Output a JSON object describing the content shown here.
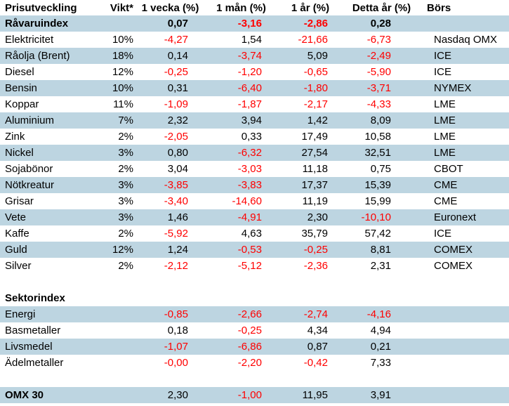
{
  "colors": {
    "band_blue": "#BDD5E1",
    "negative_red": "#FF0000",
    "text": "#000000"
  },
  "table": {
    "headers": [
      "Prisutveckling",
      "Vikt*",
      "1 vecka (%)",
      "1 mån (%)",
      "1 år (%)",
      "Detta år (%)",
      "Börs"
    ],
    "rows": [
      {
        "name": "Råvaruindex",
        "vikt": "",
        "v1w": "0,07",
        "v1m": "-3,16",
        "v1y": "-2,86",
        "ytd": "0,28",
        "bors": "",
        "bold_all": true,
        "band": true
      },
      {
        "name": "Elektricitet",
        "vikt": "10%",
        "v1w": "-4,27",
        "v1m": "1,54",
        "v1y": "-21,66",
        "ytd": "-6,73",
        "bors": "Nasdaq OMX"
      },
      {
        "name": "Råolja (Brent)",
        "vikt": "18%",
        "v1w": "0,14",
        "v1m": "-3,74",
        "v1y": "5,09",
        "ytd": "-2,49",
        "bors": "ICE",
        "band": true
      },
      {
        "name": "Diesel",
        "vikt": "12%",
        "v1w": "-0,25",
        "v1m": "-1,20",
        "v1y": "-0,65",
        "ytd": "-5,90",
        "bors": "ICE"
      },
      {
        "name": "Bensin",
        "vikt": "10%",
        "v1w": "0,31",
        "v1m": "-6,40",
        "v1y": "-1,80",
        "ytd": "-3,71",
        "bors": "NYMEX",
        "band": true
      },
      {
        "name": "Koppar",
        "vikt": "11%",
        "v1w": "-1,09",
        "v1m": "-1,87",
        "v1y": "-2,17",
        "ytd": "-4,33",
        "bors": "LME"
      },
      {
        "name": "Aluminium",
        "vikt": "7%",
        "v1w": "2,32",
        "v1m": "3,94",
        "v1y": "1,42",
        "ytd": "8,09",
        "bors": "LME",
        "band": true
      },
      {
        "name": "Zink",
        "vikt": "2%",
        "v1w": "-2,05",
        "v1m": "0,33",
        "v1y": "17,49",
        "ytd": "10,58",
        "bors": "LME"
      },
      {
        "name": "Nickel",
        "vikt": "3%",
        "v1w": "0,80",
        "v1m": "-6,32",
        "v1y": "27,54",
        "ytd": "32,51",
        "bors": "LME",
        "band": true
      },
      {
        "name": "Sojabönor",
        "vikt": "2%",
        "v1w": "3,04",
        "v1m": "-3,03",
        "v1y": "11,18",
        "ytd": "0,75",
        "bors": "CBOT"
      },
      {
        "name": "Nötkreatur",
        "vikt": "3%",
        "v1w": "-3,85",
        "v1m": "-3,83",
        "v1y": "17,37",
        "ytd": "15,39",
        "bors": "CME",
        "band": true
      },
      {
        "name": "Grisar",
        "vikt": "3%",
        "v1w": "-3,40",
        "v1m": "-14,60",
        "v1y": "11,19",
        "ytd": "15,99",
        "bors": "CME"
      },
      {
        "name": "Vete",
        "vikt": "3%",
        "v1w": "1,46",
        "v1m": "-4,91",
        "v1y": "2,30",
        "ytd": "-10,10",
        "bors": "Euronext",
        "band": true
      },
      {
        "name": "Kaffe",
        "vikt": "2%",
        "v1w": "-5,92",
        "v1m": "4,63",
        "v1y": "35,79",
        "ytd": "57,42",
        "bors": "ICE"
      },
      {
        "name": "Guld",
        "vikt": "12%",
        "v1w": "1,24",
        "v1m": "-0,53",
        "v1y": "-0,25",
        "ytd": "8,81",
        "bors": "COMEX",
        "band": true
      },
      {
        "name": "Silver",
        "vikt": "2%",
        "v1w": "-2,12",
        "v1m": "-5,12",
        "v1y": "-2,36",
        "ytd": "2,31",
        "bors": "COMEX"
      },
      {
        "spacer": true
      },
      {
        "name": "Sektorindex",
        "bold_name": true
      },
      {
        "name": "Energi",
        "v1w": "-0,85",
        "v1m": "-2,66",
        "v1y": "-2,74",
        "ytd": "-4,16",
        "band": true
      },
      {
        "name": "Basmetaller",
        "v1w": "0,18",
        "v1m": "-0,25",
        "v1y": "4,34",
        "ytd": "4,94"
      },
      {
        "name": "Livsmedel",
        "v1w": "-1,07",
        "v1m": "-6,86",
        "v1y": "0,87",
        "ytd": "0,21",
        "band": true
      },
      {
        "name": "Ädelmetaller",
        "v1w": "-0,00",
        "v1m": "-2,20",
        "v1y": "-0,42",
        "ytd": "7,33"
      },
      {
        "spacer": true
      },
      {
        "name": "OMX 30",
        "v1w": "2,30",
        "v1m": "-1,00",
        "v1y": "11,95",
        "ytd": "3,91",
        "bold_name": true,
        "band": true
      }
    ]
  }
}
